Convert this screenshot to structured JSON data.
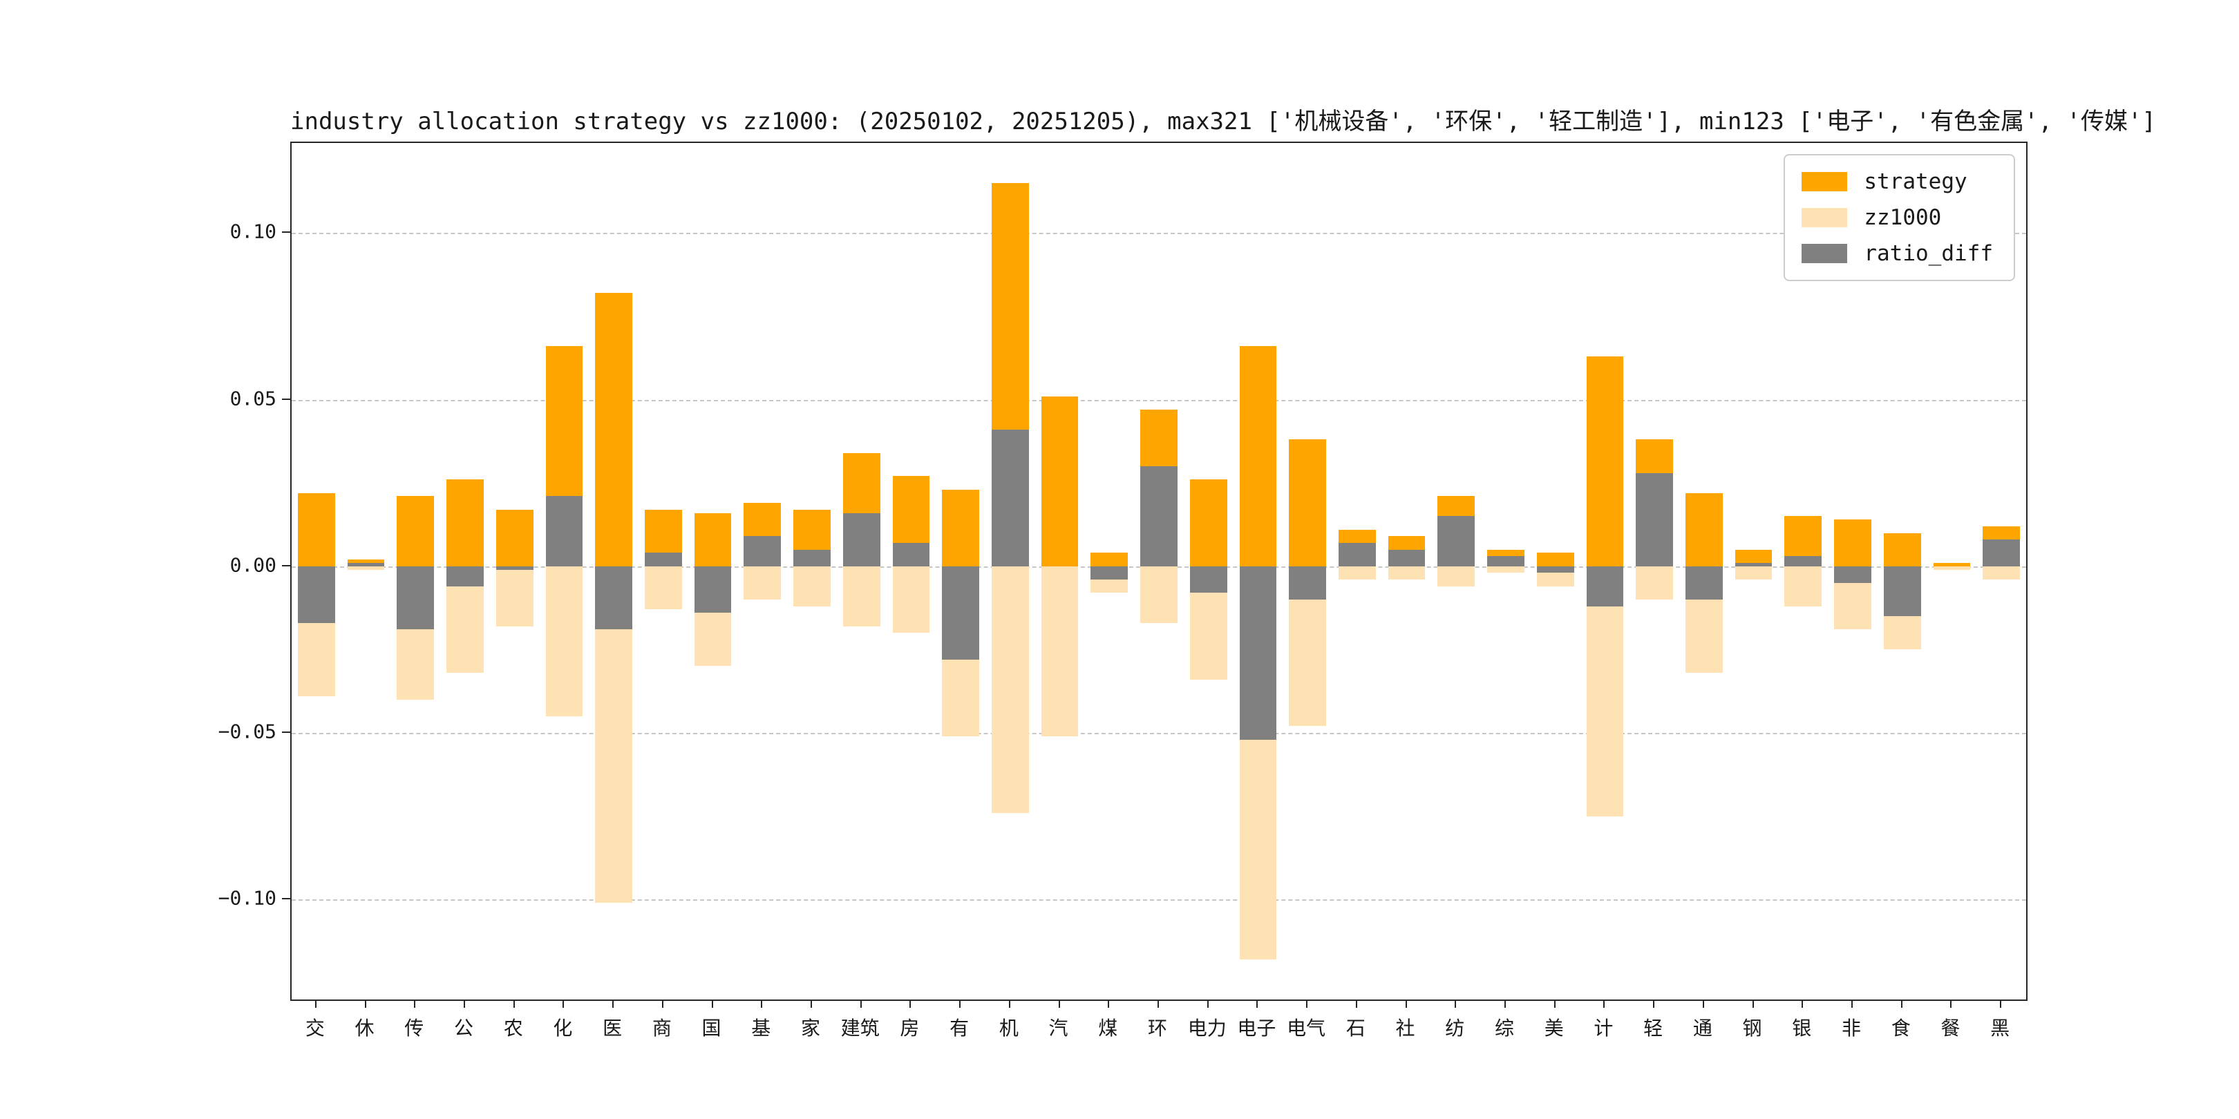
{
  "chart_data": {
    "type": "bar",
    "title": "industry allocation strategy vs zz1000: (20250102, 20251205), max321 ['机械设备', '环保', '轻工制造'], min123 ['电子', '有色金属', '传媒']",
    "xlabel": "",
    "ylabel": "",
    "ylim": [
      -0.13,
      0.127
    ],
    "grid": "horizontal-dashed",
    "legend_position": "upper right",
    "categories": [
      "交",
      "休",
      "传",
      "公",
      "农",
      "化",
      "医",
      "商",
      "国",
      "基",
      "家",
      "建筑",
      "房",
      "有",
      "机",
      "汽",
      "煤",
      "环",
      "电力",
      "电子",
      "电气",
      "石",
      "社",
      "纺",
      "综",
      "美",
      "计",
      "轻",
      "通",
      "钢",
      "银",
      "非",
      "食",
      "餐",
      "黑"
    ],
    "yticks": [
      {
        "value": 0.1,
        "label": "0.10"
      },
      {
        "value": 0.05,
        "label": "0.05"
      },
      {
        "value": 0.0,
        "label": "0.00"
      },
      {
        "value": -0.05,
        "label": "−0.05"
      },
      {
        "value": -0.1,
        "label": "−0.10"
      }
    ],
    "series": [
      {
        "name": "strategy",
        "color": "#ffa500",
        "values": [
          0.022,
          0.002,
          0.021,
          0.026,
          0.017,
          0.066,
          0.082,
          0.017,
          0.016,
          0.019,
          0.017,
          0.034,
          0.027,
          0.023,
          0.115,
          0.051,
          0.004,
          0.047,
          0.026,
          0.066,
          0.038,
          0.011,
          0.009,
          0.021,
          0.005,
          0.004,
          0.063,
          0.038,
          0.022,
          0.005,
          0.015,
          0.014,
          0.01,
          0.001,
          0.012
        ]
      },
      {
        "name": "zz1000",
        "color": "#ffe2b3",
        "values": [
          -0.039,
          -0.001,
          -0.04,
          -0.032,
          -0.018,
          -0.045,
          -0.101,
          -0.013,
          -0.03,
          -0.01,
          -0.012,
          -0.018,
          -0.02,
          -0.051,
          -0.074,
          -0.051,
          -0.008,
          -0.017,
          -0.034,
          -0.118,
          -0.048,
          -0.004,
          -0.004,
          -0.006,
          -0.002,
          -0.006,
          -0.075,
          -0.01,
          -0.032,
          -0.004,
          -0.012,
          -0.019,
          -0.025,
          -0.001,
          -0.004
        ]
      },
      {
        "name": "ratio_diff",
        "color": "#808080",
        "values": [
          -0.017,
          0.001,
          -0.019,
          -0.006,
          -0.001,
          0.021,
          -0.019,
          0.004,
          -0.014,
          0.009,
          0.005,
          0.016,
          0.007,
          -0.028,
          0.041,
          0.0,
          -0.004,
          0.03,
          -0.008,
          -0.052,
          -0.01,
          0.007,
          0.005,
          0.015,
          0.003,
          -0.002,
          -0.012,
          0.028,
          -0.01,
          0.001,
          0.003,
          -0.005,
          -0.015,
          0.0,
          0.008
        ]
      }
    ],
    "legend": {
      "entries": [
        "strategy",
        "zz1000",
        "ratio_diff"
      ]
    }
  }
}
